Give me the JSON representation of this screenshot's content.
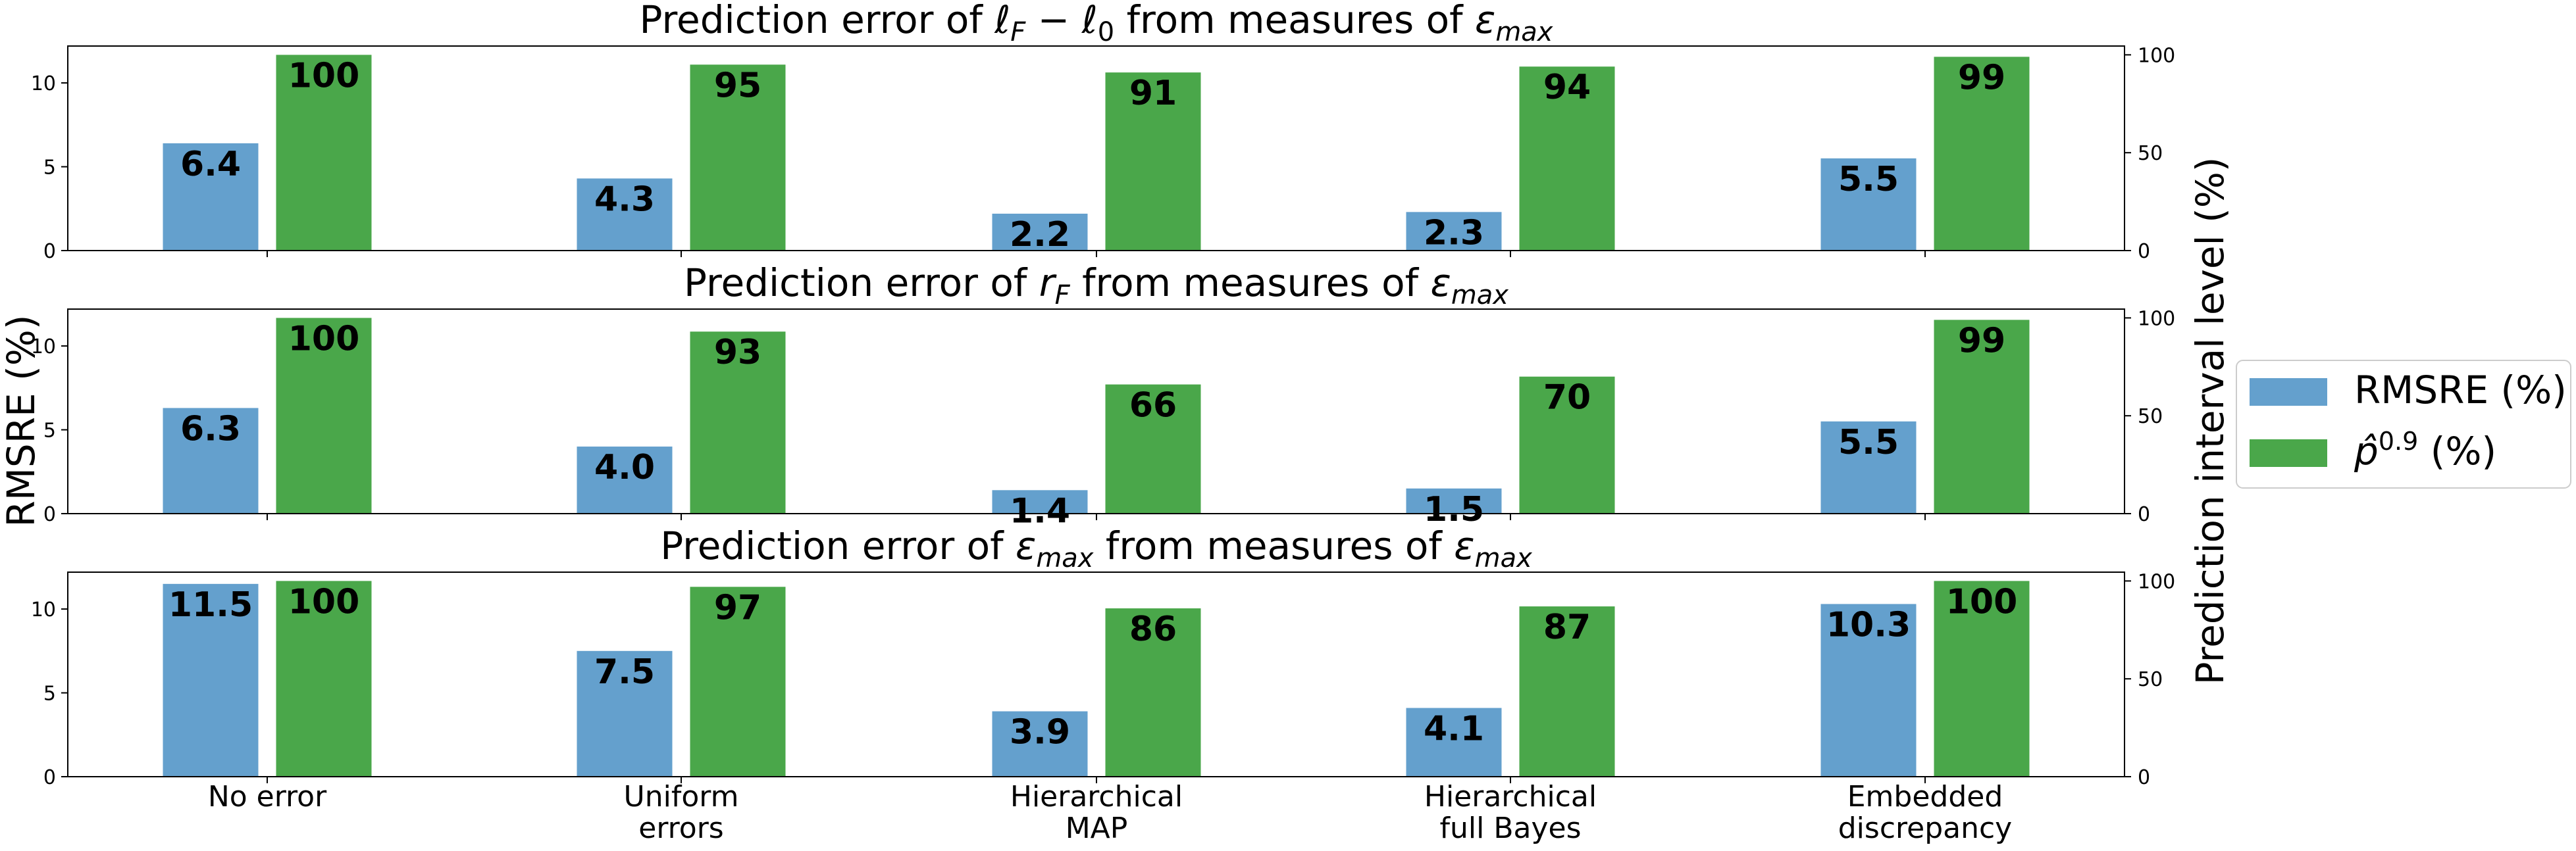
{
  "figure": {
    "left_axis_label": "RMSRE (%)",
    "right_axis_label": "Prediction interval level (%)",
    "legend": {
      "placement": "right",
      "entries": [
        {
          "label": "RMSRE (%)",
          "color": "#64a0cd"
        },
        {
          "label": "p̂",
          "sup": "0.9",
          "suffix": " (%)",
          "color": "#4aa74a"
        }
      ]
    }
  },
  "chart_data": [
    {
      "type": "bar",
      "title": "Prediction error of ℓF − ℓ0 from measures of εmax",
      "title_parts": [
        {
          "t": "Prediction error of "
        },
        {
          "t": "ℓ",
          "style": "italic"
        },
        {
          "t": "F",
          "style": "italic",
          "shift": "sub"
        },
        {
          "t": " − "
        },
        {
          "t": "ℓ",
          "style": "italic"
        },
        {
          "t": "0",
          "shift": "sub"
        },
        {
          "t": " from measures of "
        },
        {
          "t": "ε",
          "style": "italic"
        },
        {
          "t": "max",
          "style": "italic",
          "shift": "sub"
        }
      ],
      "categories": [
        "No error",
        "Uniform errors",
        "Hierarchical MAP",
        "Hierarchical full Bayes",
        "Embedded discrepancy"
      ],
      "series": [
        {
          "name": "RMSRE (%)",
          "axis": "left",
          "values": [
            6.4,
            4.3,
            2.2,
            2.3,
            5.5
          ],
          "labels": [
            "6.4",
            "4.3",
            "2.2",
            "2.3",
            "5.5"
          ]
        },
        {
          "name": "p̂0.9 (%)",
          "axis": "right",
          "values": [
            100,
            95,
            91,
            94,
            99
          ],
          "labels": [
            "100",
            "95",
            "91",
            "94",
            "99"
          ]
        }
      ],
      "ylim": [
        0,
        12.2
      ],
      "yticks": [
        "0",
        "5",
        "10"
      ],
      "y2lim": [
        0,
        104.5
      ],
      "y2ticks": [
        "0",
        "50",
        "100"
      ],
      "grid": false
    },
    {
      "type": "bar",
      "title": "Prediction error of rF from measures of εmax",
      "title_parts": [
        {
          "t": "Prediction error of "
        },
        {
          "t": "r",
          "style": "italic"
        },
        {
          "t": "F",
          "style": "italic",
          "shift": "sub"
        },
        {
          "t": " from measures of "
        },
        {
          "t": "ε",
          "style": "italic"
        },
        {
          "t": "max",
          "style": "italic",
          "shift": "sub"
        }
      ],
      "categories": [
        "No error",
        "Uniform errors",
        "Hierarchical MAP",
        "Hierarchical full Bayes",
        "Embedded discrepancy"
      ],
      "series": [
        {
          "name": "RMSRE (%)",
          "axis": "left",
          "values": [
            6.3,
            4.0,
            1.4,
            1.5,
            5.5
          ],
          "labels": [
            "6.3",
            "4.0",
            "1.4",
            "1.5",
            "5.5"
          ]
        },
        {
          "name": "p̂0.9 (%)",
          "axis": "right",
          "values": [
            100,
            93,
            66,
            70,
            99
          ],
          "labels": [
            "100",
            "93",
            "66",
            "70",
            "99"
          ]
        }
      ],
      "ylim": [
        0,
        12.2
      ],
      "yticks": [
        "0",
        "5",
        "10"
      ],
      "y2lim": [
        0,
        104.5
      ],
      "y2ticks": [
        "0",
        "50",
        "100"
      ],
      "grid": false
    },
    {
      "type": "bar",
      "title": "Prediction error of εmax from measures of εmax",
      "title_parts": [
        {
          "t": "Prediction error of "
        },
        {
          "t": "ε",
          "style": "italic"
        },
        {
          "t": "max",
          "style": "italic",
          "shift": "sub"
        },
        {
          "t": " from measures of "
        },
        {
          "t": "ε",
          "style": "italic"
        },
        {
          "t": "max",
          "style": "italic",
          "shift": "sub"
        }
      ],
      "categories": [
        "No error",
        "Uniform errors",
        "Hierarchical MAP",
        "Hierarchical full Bayes",
        "Embedded discrepancy"
      ],
      "category_lines": [
        [
          "No error"
        ],
        [
          "Uniform",
          "errors"
        ],
        [
          "Hierarchical",
          "MAP"
        ],
        [
          "Hierarchical",
          "full Bayes"
        ],
        [
          "Embedded",
          "discrepancy"
        ]
      ],
      "series": [
        {
          "name": "RMSRE (%)",
          "axis": "left",
          "values": [
            11.5,
            7.5,
            3.9,
            4.1,
            10.3
          ],
          "labels": [
            "11.5",
            "7.5",
            "3.9",
            "4.1",
            "10.3"
          ]
        },
        {
          "name": "p̂0.9 (%)",
          "axis": "right",
          "values": [
            100,
            97,
            86,
            87,
            100
          ],
          "labels": [
            "100",
            "97",
            "86",
            "87",
            "100"
          ]
        }
      ],
      "ylim": [
        0,
        12.2
      ],
      "yticks": [
        "0",
        "5",
        "10"
      ],
      "y2lim": [
        0,
        104.5
      ],
      "y2ticks": [
        "0",
        "50",
        "100"
      ],
      "grid": false
    }
  ]
}
